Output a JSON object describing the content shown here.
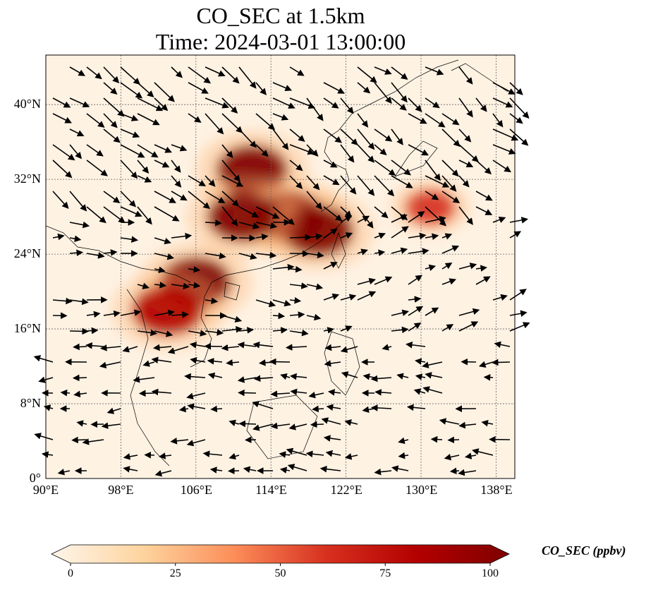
{
  "title": {
    "line1": "CO_SEC at 1.5km",
    "line2": "Time: 2024-03-01 13:00:00"
  },
  "map": {
    "lon_range": [
      90,
      140
    ],
    "lat_range": [
      0,
      45.3
    ],
    "lon_ticks": [
      {
        "value": 90,
        "label": "90°E"
      },
      {
        "value": 98,
        "label": "98°E"
      },
      {
        "value": 106,
        "label": "106°E"
      },
      {
        "value": 114,
        "label": "114°E"
      },
      {
        "value": 122,
        "label": "122°E"
      },
      {
        "value": 130,
        "label": "130°E"
      },
      {
        "value": 138,
        "label": "138°E"
      }
    ],
    "lat_ticks": [
      {
        "value": 0,
        "label": "0°"
      },
      {
        "value": 8,
        "label": "8°N"
      },
      {
        "value": 16,
        "label": "16°N"
      },
      {
        "value": 24,
        "label": "24°N"
      },
      {
        "value": 32,
        "label": "32°N"
      },
      {
        "value": 40,
        "label": "40°N"
      }
    ],
    "field": "CO_SEC",
    "hotspots": [
      {
        "lon": 112,
        "lat": 33,
        "value": 85
      },
      {
        "lon": 116,
        "lat": 28,
        "value": 100
      },
      {
        "lon": 119,
        "lat": 26.5,
        "value": 100
      },
      {
        "lon": 111,
        "lat": 28,
        "value": 80
      },
      {
        "lon": 106,
        "lat": 21,
        "value": 95
      },
      {
        "lon": 103,
        "lat": 18,
        "value": 70
      },
      {
        "lon": 131,
        "lat": 29,
        "value": 40
      }
    ]
  },
  "colorbar": {
    "label": "CO_SEC (ppbv)",
    "ticks": [
      "0",
      "25",
      "50",
      "75",
      "100"
    ],
    "min": 0,
    "max": 100,
    "colors": [
      "#fff5eb",
      "#fdd49e",
      "#fc8d59",
      "#d7301f",
      "#b30000",
      "#7f0000"
    ]
  }
}
